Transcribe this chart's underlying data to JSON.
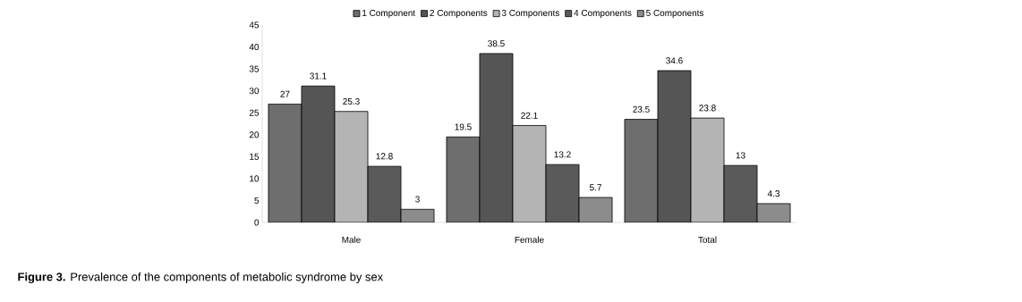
{
  "chart_data": {
    "type": "bar",
    "categories": [
      "Male",
      "Female",
      "Total"
    ],
    "series": [
      {
        "name": "1 Component",
        "color": "#6e6e6e",
        "values": [
          27,
          19.5,
          23.5
        ]
      },
      {
        "name": "2 Components",
        "color": "#555555",
        "values": [
          31.1,
          38.5,
          34.6
        ]
      },
      {
        "name": "3 Components",
        "color": "#b4b4b4",
        "values": [
          25.3,
          22.1,
          23.8
        ]
      },
      {
        "name": "4 Components",
        "color": "#5a5a5a",
        "values": [
          12.8,
          13.2,
          13
        ]
      },
      {
        "name": "5 Components",
        "color": "#8c8c8c",
        "values": [
          3,
          5.7,
          4.3
        ]
      }
    ],
    "ylim": [
      0,
      45
    ],
    "yticks": [
      0,
      5,
      10,
      15,
      20,
      25,
      30,
      35,
      40,
      45
    ],
    "grid": false,
    "legend": "top",
    "data_labels": true,
    "annotations": [
      "**Figure 3.** Prevalence of the components of metabolic syndrome by sex"
    ]
  }
}
